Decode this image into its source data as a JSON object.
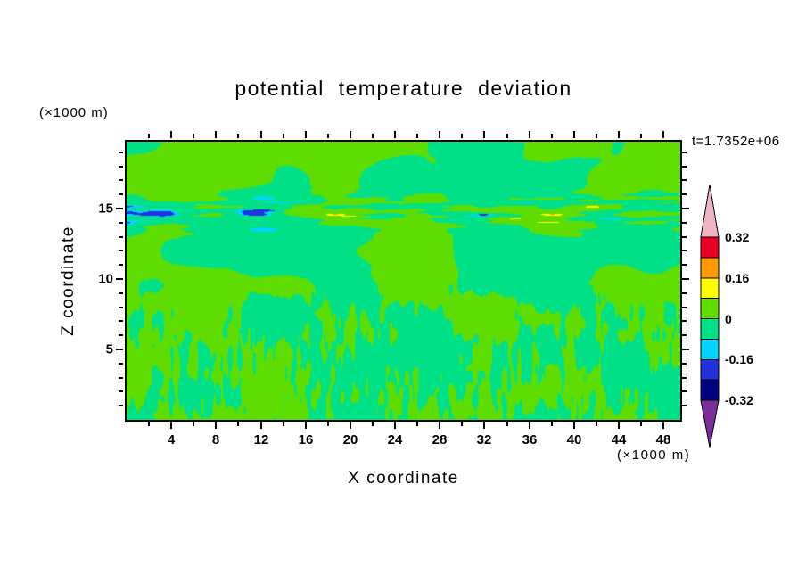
{
  "chart_data": {
    "type": "heatmap",
    "title": "potential temperature deviation",
    "xlabel": "X coordinate",
    "ylabel": "Z coordinate",
    "x_unit_label": "(×1000 m)",
    "y_unit_label": "(×1000 m)",
    "time_annotation": "t=1.7352e+06",
    "x_range": [
      0,
      49.5
    ],
    "z_range": [
      0,
      19.75
    ],
    "x_major_ticks": [
      4,
      8,
      12,
      16,
      20,
      24,
      28,
      32,
      36,
      40,
      44,
      48
    ],
    "x_minor_step": 2,
    "z_major_ticks": [
      5,
      10,
      15
    ],
    "z_minor_step": 1,
    "grid": false,
    "legend_position": "right-colorbar",
    "colorbar": {
      "over_arrow_color": "#eeb4c4",
      "under_arrow_color": "#7b2d9b",
      "segments": [
        {
          "from": 0.24,
          "to": 0.32,
          "color": "#ea0025"
        },
        {
          "from": 0.16,
          "to": 0.24,
          "color": "#ff9900"
        },
        {
          "from": 0.08,
          "to": 0.16,
          "color": "#ffff00"
        },
        {
          "from": 0.0,
          "to": 0.08,
          "color": "#5fdd00"
        },
        {
          "from": -0.08,
          "to": 0.0,
          "color": "#00e187"
        },
        {
          "from": -0.16,
          "to": -0.08,
          "color": "#00d4ff"
        },
        {
          "from": -0.24,
          "to": -0.16,
          "color": "#2233dd"
        },
        {
          "from": -0.32,
          "to": -0.24,
          "color": "#000080"
        }
      ],
      "tick_labels": [
        "0.32",
        "0.16",
        "0",
        "-0.16",
        "-0.32"
      ]
    },
    "field": {
      "description": "Filled contours of potential temperature deviation in an x-z cross-section: values hover near zero, rendered as weakly positive yellow-green and weakly negative spring-green patches; fine vertical convective filaments below z≈9 km, smooth large blobs aloft, and a streaky shear layer near z≈15 km containing rare stronger extremes (yellow/orange and cyan specks).",
      "palette": {
        "positive": "#5fdd00",
        "negative": "#00e187",
        "high": "#ffff00",
        "very_high": "#ff9900",
        "low": "#00d4ff",
        "very_low": "#2233dd"
      },
      "render": {
        "seed": 7,
        "blob_scale_x": 80,
        "blob_scale_y": 40,
        "filament_scale_x": 5.5,
        "filament_scale_y": 24,
        "streak_scale_x": 48,
        "streak_scale_y": 4.5,
        "band_center_zfrac": 0.745,
        "band_width_zfrac": 0.055,
        "thresholds": {
          "very_high": 0.7,
          "high": 0.55,
          "zero": 0.0,
          "low": -0.55,
          "very_low": -0.72
        }
      }
    }
  }
}
